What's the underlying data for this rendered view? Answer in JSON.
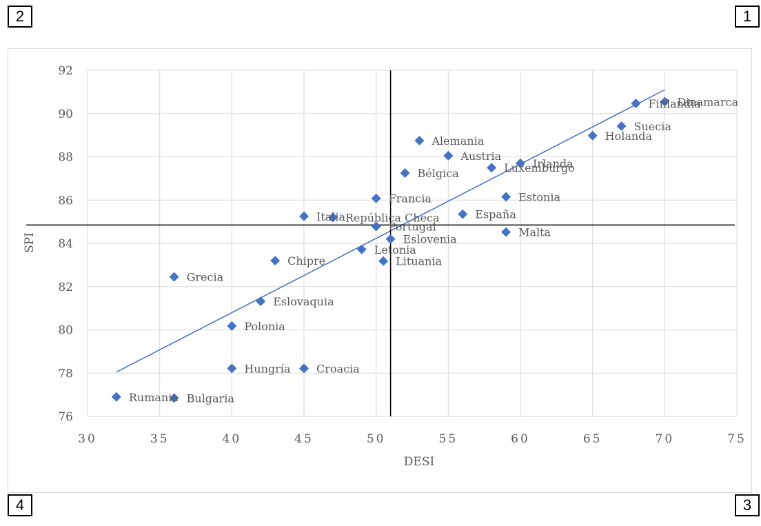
{
  "quadrants": {
    "q1": "1",
    "q2": "2",
    "q3": "3",
    "q4": "4"
  },
  "chart_data": {
    "type": "scatter",
    "xlabel": "DESI",
    "ylabel": "SPI",
    "xlim": [
      30,
      75
    ],
    "ylim": [
      76,
      92
    ],
    "x_ticks": [
      30,
      35,
      40,
      45,
      50,
      55,
      60,
      65,
      70,
      75
    ],
    "y_ticks": [
      76,
      78,
      80,
      82,
      84,
      86,
      88,
      90,
      92
    ],
    "grid": true,
    "marker_color": "#4472C4",
    "trendline": {
      "color": "#4472C4",
      "x": [
        32,
        70
      ],
      "y": [
        78.05,
        91.1
      ]
    },
    "reference_lines": {
      "x": 51,
      "y": 84.85,
      "color": "#000000"
    },
    "points": [
      {
        "label": "Dinamarca",
        "x": 70,
        "y": 90.55
      },
      {
        "label": "Finlandia",
        "x": 68,
        "y": 90.47
      },
      {
        "label": "Suecia",
        "x": 67,
        "y": 89.42
      },
      {
        "label": "Holanda",
        "x": 65,
        "y": 88.98
      },
      {
        "label": "Alemania",
        "x": 53,
        "y": 88.75
      },
      {
        "label": "Austria",
        "x": 55,
        "y": 88.05
      },
      {
        "label": "Irlanda",
        "x": 60,
        "y": 87.7
      },
      {
        "label": "Luxemburgo",
        "x": 58,
        "y": 87.5
      },
      {
        "label": "Bélgica",
        "x": 52,
        "y": 87.25
      },
      {
        "label": "Francia",
        "x": 50,
        "y": 86.08
      },
      {
        "label": "Estonia",
        "x": 59,
        "y": 86.15
      },
      {
        "label": "España",
        "x": 56,
        "y": 85.35
      },
      {
        "label": "Italia",
        "x": 45,
        "y": 85.25
      },
      {
        "label": "República Checa",
        "x": 47,
        "y": 85.2
      },
      {
        "label": "Portugal",
        "x": 50,
        "y": 84.78
      },
      {
        "label": "Malta",
        "x": 59,
        "y": 84.52
      },
      {
        "label": "Eslovenia",
        "x": 51,
        "y": 84.2
      },
      {
        "label": "Letonia",
        "x": 49,
        "y": 83.72
      },
      {
        "label": "Lituania",
        "x": 50.5,
        "y": 83.18
      },
      {
        "label": "Chipre",
        "x": 43,
        "y": 83.2
      },
      {
        "label": "Grecia",
        "x": 36,
        "y": 82.45
      },
      {
        "label": "Eslovaquia",
        "x": 42,
        "y": 81.32
      },
      {
        "label": "Polonia",
        "x": 40,
        "y": 80.18
      },
      {
        "label": "Hungría",
        "x": 40,
        "y": 78.22
      },
      {
        "label": "Croacia",
        "x": 45,
        "y": 78.22
      },
      {
        "label": "Rumania",
        "x": 32,
        "y": 76.9
      },
      {
        "label": "Bulgaria",
        "x": 36,
        "y": 76.85
      }
    ]
  }
}
